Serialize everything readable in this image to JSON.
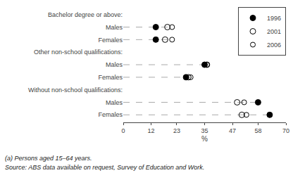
{
  "chart_data": {
    "type": "dot",
    "categories": [
      "Bachelor degree or above:",
      "Males",
      "Females",
      "Other non-school qualifications:",
      "Males",
      "Females",
      "Without non-school qualifications:",
      "Males",
      "Females"
    ],
    "series": [
      {
        "name": "1996",
        "color": "black",
        "marker": "circle",
        "values": [
          null,
          14,
          14,
          null,
          35,
          27,
          null,
          58,
          63
        ]
      },
      {
        "name": "2001",
        "color": "black",
        "marker": "circle-open",
        "values": [
          null,
          19,
          18,
          null,
          36,
          28,
          null,
          49,
          51
        ]
      },
      {
        "name": "2006",
        "color": "black",
        "marker": "circle-open",
        "values": [
          null,
          21,
          21,
          null,
          36,
          29,
          null,
          52,
          53
        ]
      }
    ],
    "x_label": "%",
    "xlim": [
      0,
      70
    ],
    "xticks": [
      0,
      12,
      23,
      35,
      47,
      58,
      70
    ],
    "annotations": [
      "(a) Persons aged 15–64 years.",
      "Source: ABS data available on request, Survey of Education and Work."
    ],
    "grid": false,
    "legend": "upper right"
  }
}
